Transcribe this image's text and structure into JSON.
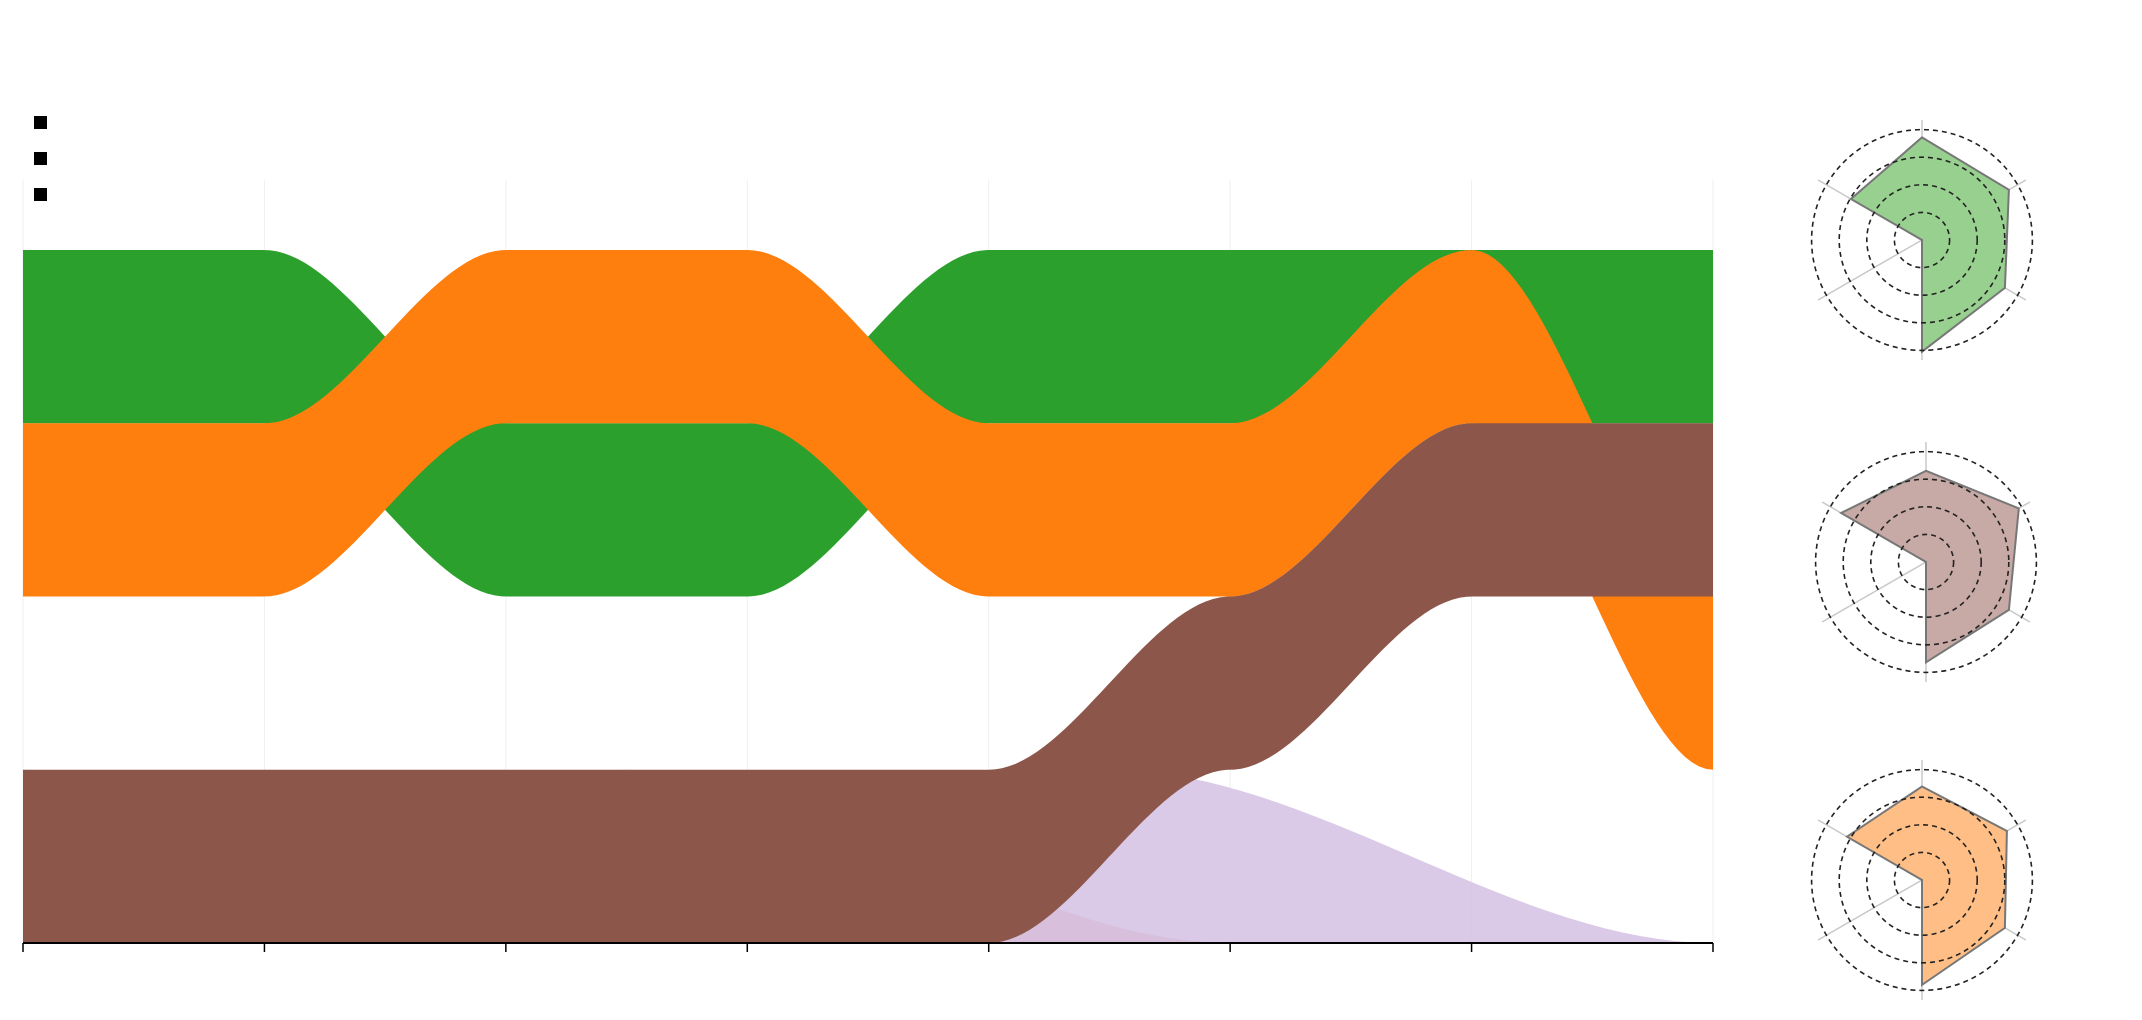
{
  "chart_data": [
    {
      "type": "area",
      "subtype": "bumps-bands",
      "x": [
        "",
        "",
        "",
        "",
        "",
        "",
        "",
        ""
      ],
      "series": [
        {
          "color": "#2ca02c",
          "values": [
            1,
            1,
            2,
            2,
            1,
            1,
            1,
            1
          ]
        },
        {
          "color": "#ff7f0e",
          "values": [
            2,
            2,
            1,
            1,
            2,
            2,
            1,
            3
          ]
        },
        {
          "color": "#8c564b",
          "values": [
            4,
            4,
            4,
            4,
            4,
            3,
            2,
            2
          ]
        }
      ],
      "overlay_bumps": [
        {
          "color": "#a6c8e2",
          "peak_x": 0,
          "start_x": 0,
          "end_x": 2.5
        },
        {
          "color": "#eea8a8",
          "peak_x": 2.5,
          "start_x": 0,
          "end_x": 5
        },
        {
          "color": "#d3c1e3",
          "peak_x": 4.5,
          "start_x": 2.5,
          "end_x": 7
        }
      ],
      "ranks": 4,
      "grid": true,
      "legend": {
        "placement": "top-left",
        "entries": [
          "",
          "",
          ""
        ]
      }
    },
    {
      "type": "radar",
      "axes": [
        "",
        "",
        "",
        "",
        "",
        ""
      ],
      "rlim": [
        0,
        5
      ],
      "rings": 4,
      "charts": [
        {
          "color": "#2ca02c",
          "fill": "#98d08f",
          "values": [
            4.5,
            4.4,
            4.2,
            4.9,
            0,
            3.6
          ]
        },
        {
          "color": "#8c564b",
          "fill": "#c7a9a5",
          "values": [
            4.0,
            4.7,
            4.2,
            4.4,
            0,
            4.3
          ]
        },
        {
          "color": "#ff7f0e",
          "fill": "#ffbe85",
          "values": [
            4.1,
            4.3,
            4.2,
            4.6,
            0,
            3.8
          ]
        }
      ]
    }
  ]
}
